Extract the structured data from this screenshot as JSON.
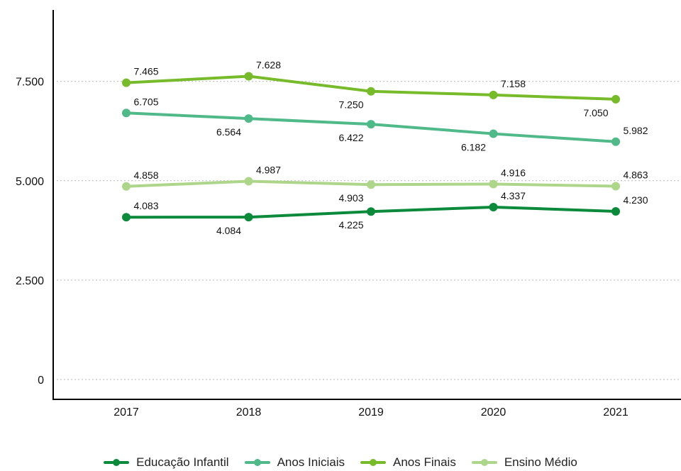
{
  "chart_data": {
    "type": "line",
    "title": "",
    "xlabel": "",
    "ylabel": "",
    "categories": [
      "2017",
      "2018",
      "2019",
      "2020",
      "2021"
    ],
    "ylim": [
      0,
      9000
    ],
    "yticks": [
      0,
      2500,
      5000,
      7500
    ],
    "ytick_labels": [
      "0",
      "2.500",
      "5.000",
      "7.500"
    ],
    "grid": "horizontal dotted",
    "legend_position": "bottom",
    "series": [
      {
        "name": "Educação Infantil",
        "color": "#0a8a3a",
        "values": [
          4083,
          4084,
          4225,
          4337,
          4230
        ],
        "labels": [
          "4.083",
          "4.084",
          "4.225",
          "4.337",
          "4.230"
        ],
        "label_pos": [
          "above",
          "below",
          "below",
          "above",
          "above"
        ]
      },
      {
        "name": "Anos Iniciais",
        "color": "#4fb98a",
        "values": [
          6705,
          6564,
          6422,
          6182,
          5982
        ],
        "labels": [
          "6.705",
          "6.564",
          "6.422",
          "6.182",
          "5.982"
        ],
        "label_pos": [
          "above",
          "below",
          "below",
          "below",
          "above"
        ]
      },
      {
        "name": "Anos Finais",
        "color": "#77bb2a",
        "values": [
          7465,
          7628,
          7250,
          7158,
          7050
        ],
        "labels": [
          "7.465",
          "7.628",
          "7.250",
          "7.158",
          "7.050"
        ],
        "label_pos": [
          "above",
          "above",
          "below",
          "above",
          "below"
        ]
      },
      {
        "name": "Ensino Médio",
        "color": "#aed68a",
        "values": [
          4858,
          4987,
          4903,
          4916,
          4863
        ],
        "labels": [
          "4.858",
          "4.987",
          "4.903",
          "4.916",
          "4.863"
        ],
        "label_pos": [
          "above",
          "above",
          "below",
          "above",
          "above"
        ]
      }
    ]
  }
}
